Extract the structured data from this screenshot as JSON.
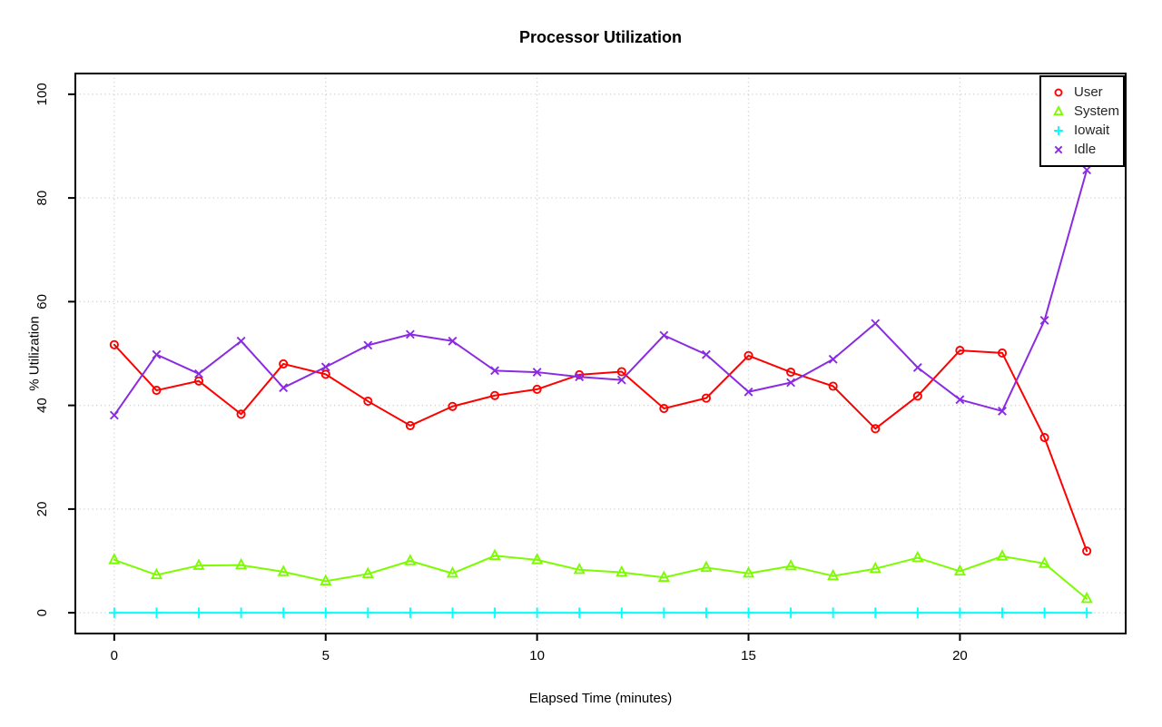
{
  "chart_data": {
    "type": "line",
    "markers": true,
    "title": "Processor Utilization",
    "xlabel": "Elapsed Time (minutes)",
    "ylabel": "% Utilization",
    "xlim": [
      0,
      23
    ],
    "ylim": [
      0,
      100
    ],
    "x_ticks": [
      0,
      5,
      10,
      15,
      20
    ],
    "y_ticks": [
      0,
      20,
      40,
      60,
      80,
      100
    ],
    "grid": true,
    "grid_style": "dotted",
    "legend_position": "top-right",
    "x": [
      0,
      1,
      2,
      3,
      4,
      5,
      6,
      7,
      8,
      9,
      10,
      11,
      12,
      13,
      14,
      15,
      16,
      17,
      18,
      19,
      20,
      21,
      22,
      23
    ],
    "series": [
      {
        "name": "User",
        "marker": "circle",
        "color": "#FF0000",
        "values": [
          51.7,
          42.9,
          44.7,
          38.3,
          48.0,
          46.0,
          40.8,
          36.1,
          39.8,
          41.9,
          43.1,
          45.9,
          46.5,
          39.4,
          41.4,
          49.6,
          46.4,
          43.7,
          35.5,
          41.8,
          50.6,
          50.1,
          33.8,
          11.9
        ]
      },
      {
        "name": "System",
        "marker": "triangle",
        "color": "#7CFC00",
        "values": [
          10.2,
          7.3,
          9.1,
          9.2,
          7.9,
          6.1,
          7.5,
          10.0,
          7.6,
          11.0,
          10.2,
          8.3,
          7.8,
          6.8,
          8.7,
          7.6,
          9.0,
          7.1,
          8.5,
          10.6,
          8.0,
          10.9,
          9.5,
          2.7
        ]
      },
      {
        "name": "Iowait",
        "marker": "plus",
        "color": "#00FFFF",
        "values": [
          0,
          0,
          0,
          0,
          0,
          0,
          0,
          0,
          0,
          0,
          0,
          0,
          0,
          0,
          0,
          0,
          0,
          0,
          0,
          0,
          0,
          0,
          0,
          0
        ]
      },
      {
        "name": "Idle",
        "marker": "x",
        "color": "#8A2BE2",
        "values": [
          38.1,
          49.8,
          46.1,
          52.4,
          43.4,
          47.4,
          51.6,
          53.7,
          52.4,
          46.7,
          46.4,
          45.5,
          44.9,
          53.5,
          49.8,
          42.6,
          44.4,
          48.9,
          55.8,
          47.3,
          41.1,
          38.9,
          56.4,
          85.4
        ]
      }
    ],
    "colors": {
      "background": "#FFFFFF",
      "frame": "#000000",
      "grid": "#D3D3D3",
      "text": "#000000",
      "legend_text": "#262626"
    }
  }
}
